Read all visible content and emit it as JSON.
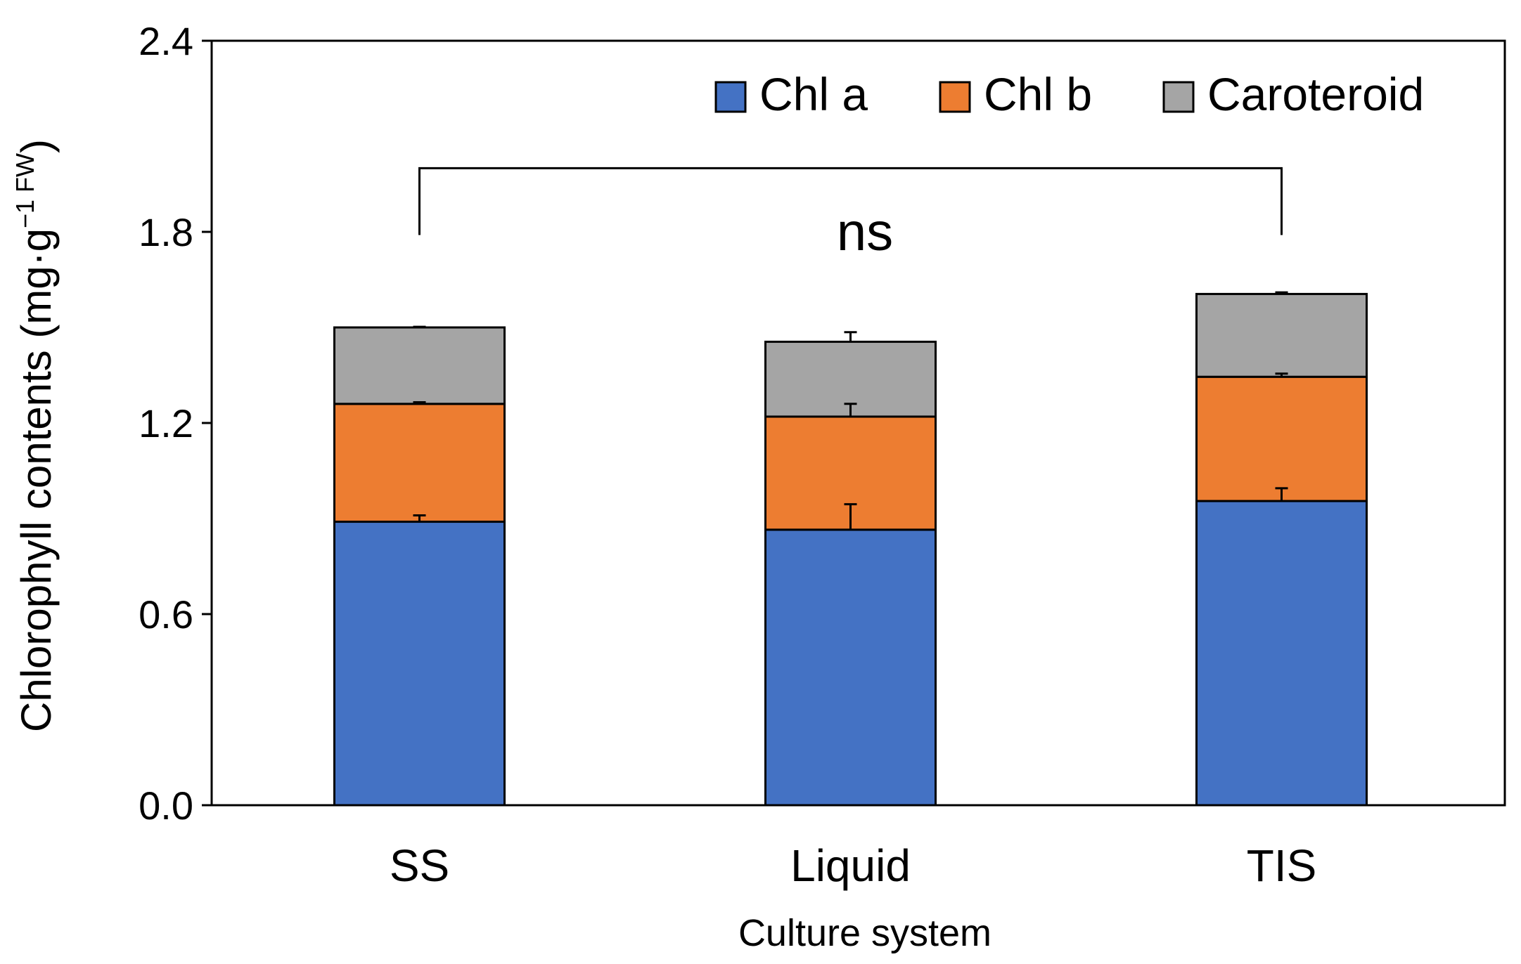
{
  "chart_data": {
    "type": "bar",
    "stacked": true,
    "categories": [
      "SS",
      "Liquid",
      "TIS"
    ],
    "series": [
      {
        "name": "Chl a",
        "color": "#4472C4",
        "values": [
          0.89,
          0.865,
          0.955
        ],
        "errors": [
          0.02,
          0.08,
          0.04
        ]
      },
      {
        "name": "Chl b",
        "color": "#ED7D31",
        "values": [
          0.37,
          0.355,
          0.39
        ],
        "errors": [
          0.005,
          0.04,
          0.01
        ]
      },
      {
        "name": "Caroteroid",
        "color": "#A5A5A5",
        "values": [
          0.24,
          0.235,
          0.26
        ],
        "errors": [
          0.002,
          0.03,
          0.005
        ]
      }
    ],
    "ylim": [
      0,
      2.4
    ],
    "yticks": [
      "0.0",
      "0.6",
      "1.2",
      "1.8",
      "2.4"
    ],
    "ylabel": "Chlorophyll contents (mg·g",
    "ylabel_superscript": "−1 FW",
    "ylabel_close": ")",
    "xlabel": "Culture system",
    "legend_position": "top-right",
    "annotation": {
      "text": "ns",
      "bracket_from": "SS",
      "bracket_to": "TIS",
      "bracket_y": 2.0,
      "bracket_drop_to": 1.79
    }
  }
}
